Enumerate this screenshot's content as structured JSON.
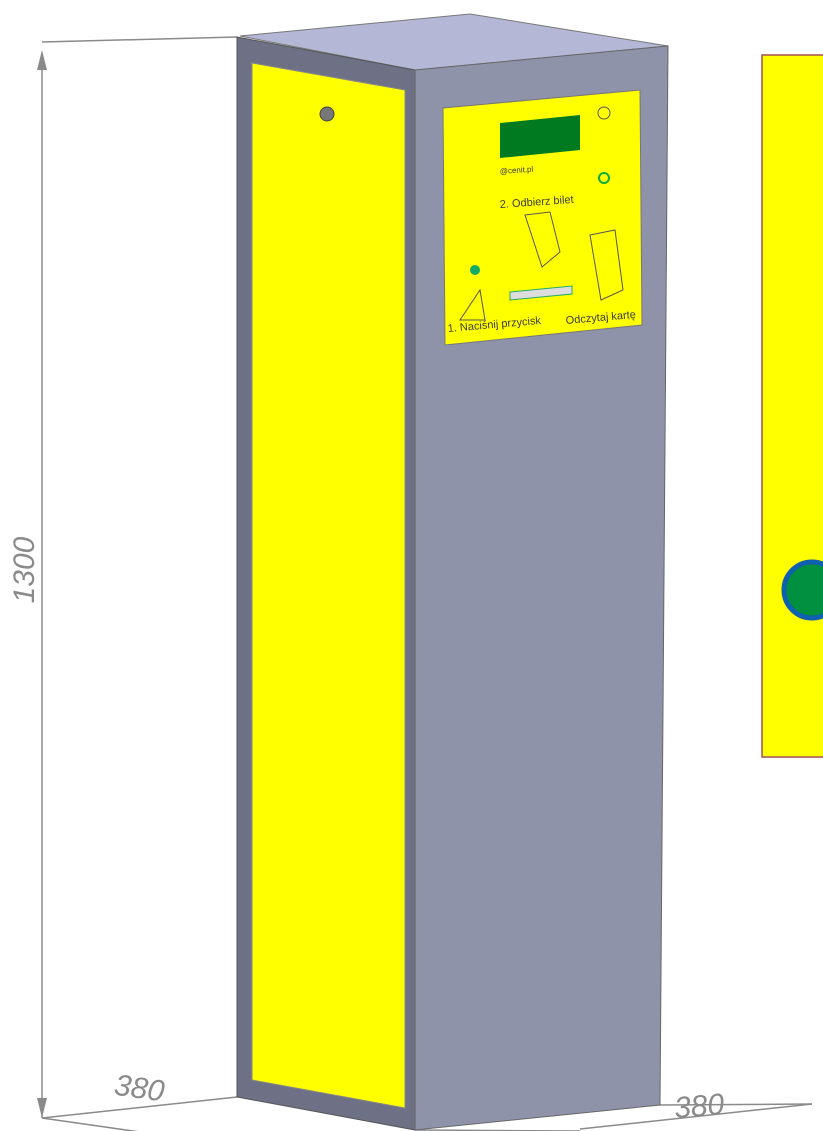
{
  "dimensions": {
    "height": "1300",
    "width": "380",
    "depth": "380"
  },
  "panel": {
    "site": "@cenit.pl",
    "step2": "2. Odbierz bilet",
    "step1": "1. Naciśnij przycisk",
    "card": "Odczytaj kartę"
  }
}
